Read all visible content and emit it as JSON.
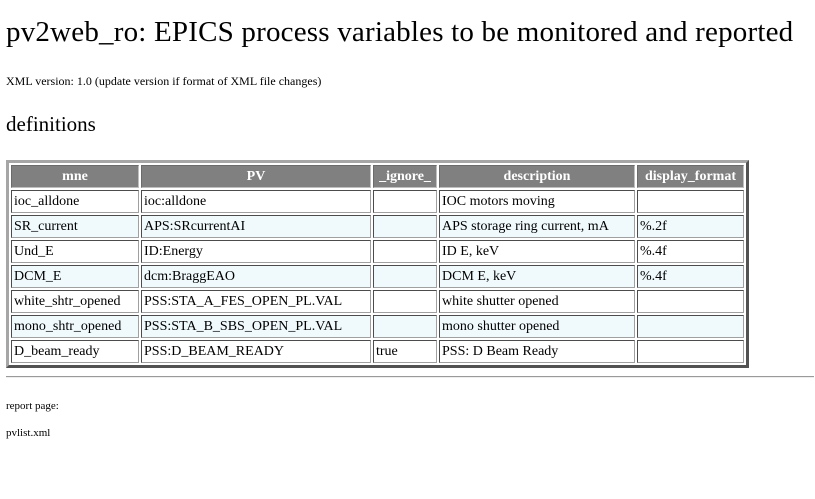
{
  "page": {
    "title": "pv2web_ro: EPICS process variables to be monitored and reported",
    "version_text": "XML version: 1.0 (update version if format of XML file changes)",
    "section_heading": "definitions"
  },
  "table": {
    "headers": {
      "mne": "mne",
      "pv": "PV",
      "ignore": "_ignore_",
      "description": "description",
      "display_format": "display_format"
    },
    "rows": [
      {
        "mne": "ioc_alldone",
        "pv": "ioc:alldone",
        "ignore": "",
        "description": "IOC motors moving",
        "display_format": ""
      },
      {
        "mne": "SR_current",
        "pv": "APS:SRcurrentAI",
        "ignore": "",
        "description": "APS storage ring current, mA",
        "display_format": "%.2f"
      },
      {
        "mne": "Und_E",
        "pv": "ID:Energy",
        "ignore": "",
        "description": "ID E, keV",
        "display_format": "%.4f"
      },
      {
        "mne": "DCM_E",
        "pv": "dcm:BraggEAO",
        "ignore": "",
        "description": "DCM E, keV",
        "display_format": "%.4f"
      },
      {
        "mne": "white_shtr_opened",
        "pv": "PSS:STA_A_FES_OPEN_PL.VAL",
        "ignore": "",
        "description": "white shutter opened",
        "display_format": ""
      },
      {
        "mne": "mono_shtr_opened",
        "pv": "PSS:STA_B_SBS_OPEN_PL.VAL",
        "ignore": "",
        "description": "mono shutter opened",
        "display_format": ""
      },
      {
        "mne": "D_beam_ready",
        "pv": "PSS:D_BEAM_READY",
        "ignore": "true",
        "description": "PSS: D Beam Ready",
        "display_format": ""
      }
    ]
  },
  "footer": {
    "report_label": "report page:",
    "report_file": "pvlist.xml"
  }
}
